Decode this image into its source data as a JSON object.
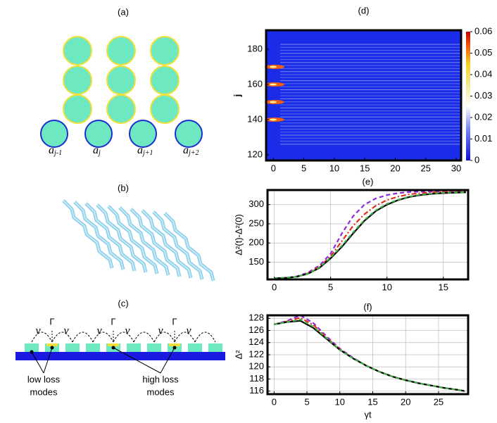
{
  "panels": {
    "a": {
      "label": "(a)",
      "sites": [
        {
          "base": "a",
          "sub": "j-1"
        },
        {
          "base": "a",
          "sub": "j"
        },
        {
          "base": "a",
          "sub": "j+1"
        },
        {
          "base": "a",
          "sub": "j+2"
        }
      ]
    },
    "b": {
      "label": "(b)"
    },
    "c": {
      "label": "(c)",
      "gamma": "Γ",
      "hop": "v",
      "low": [
        "low loss",
        "modes"
      ],
      "high": [
        "high loss",
        "modes"
      ]
    }
  },
  "chart_data": [
    {
      "type": "heatmap",
      "title": "(d)",
      "ylabel": "j",
      "xlim": [
        -1.2,
        30.8
      ],
      "ylim": [
        116.8,
        190.8
      ],
      "xticks": [
        0,
        5,
        10,
        15,
        20,
        25,
        30
      ],
      "yticks": [
        120,
        140,
        160,
        180
      ],
      "colorbar": {
        "lim": [
          0,
          0.06
        ],
        "ticks": [
          0,
          0.01,
          0.02,
          0.03,
          0.04,
          0.05,
          0.06
        ]
      }
    },
    {
      "type": "line",
      "title": "(e)",
      "ylabel": "Δ²(t)-Δ²(0)",
      "xlim": [
        -0.6,
        17.2
      ],
      "ylim": [
        105,
        338
      ],
      "xticks": [
        0,
        5,
        10,
        15
      ],
      "yticks": [
        150,
        200,
        250,
        300
      ],
      "grid": true,
      "x": [
        0,
        1,
        2,
        3,
        4,
        5,
        6,
        7,
        8,
        9,
        10,
        11,
        12,
        13,
        14,
        15,
        16,
        17
      ],
      "series": [
        {
          "color": "#8a2be2",
          "dash": "6,4",
          "values": [
            108,
            109,
            113,
            123,
            141,
            172,
            225,
            270,
            300,
            316,
            325,
            330,
            333,
            334,
            334,
            334,
            334,
            334
          ]
        },
        {
          "color": "#e0301e",
          "dash": "7,3,2,3",
          "values": [
            108,
            109,
            112,
            121,
            138,
            165,
            205,
            245,
            275,
            297,
            312,
            321,
            327,
            330,
            332,
            333,
            333,
            333
          ]
        },
        {
          "color": "#000000",
          "dash": "",
          "values": [
            108,
            109,
            112,
            120,
            135,
            160,
            190,
            225,
            258,
            283,
            300,
            312,
            320,
            325,
            328,
            330,
            331,
            332
          ]
        },
        {
          "color": "#3cb043",
          "dash": "5,4",
          "values": [
            108,
            109,
            112,
            120,
            136,
            162,
            193,
            228,
            260,
            285,
            302,
            313,
            321,
            326,
            329,
            331,
            332,
            332
          ]
        }
      ]
    },
    {
      "type": "line",
      "title": "(f)",
      "ylabel": "Δ²",
      "xlabel": "γt",
      "xlim": [
        -1,
        29.5
      ],
      "ylim": [
        115.5,
        128.5
      ],
      "xticks": [
        0,
        5,
        10,
        15,
        20,
        25
      ],
      "yticks": [
        116,
        118,
        120,
        122,
        124,
        126,
        128
      ],
      "grid": true,
      "x": [
        0,
        2,
        4,
        6,
        8,
        10,
        12,
        14,
        16,
        18,
        20,
        22,
        24,
        26,
        28,
        29
      ],
      "series": [
        {
          "color": "#8a2be2",
          "dash": "6,4",
          "values": [
            127.0,
            127.6,
            128.5,
            127.2,
            125.0,
            123.0,
            121.5,
            120.2,
            119.2,
            118.4,
            117.8,
            117.3,
            116.9,
            116.5,
            116.2,
            116.0
          ]
        },
        {
          "color": "#e0301e",
          "dash": "7,3,2,3",
          "values": [
            127.0,
            127.5,
            128.1,
            126.9,
            124.8,
            122.9,
            121.4,
            120.2,
            119.2,
            118.4,
            117.8,
            117.3,
            116.9,
            116.5,
            116.2,
            116.0
          ]
        },
        {
          "color": "#000000",
          "dash": "",
          "values": [
            127.0,
            127.4,
            127.6,
            126.4,
            124.6,
            122.8,
            121.4,
            120.2,
            119.2,
            118.4,
            117.8,
            117.3,
            116.9,
            116.5,
            116.2,
            116.0
          ]
        },
        {
          "color": "#3cb043",
          "dash": "5,4",
          "values": [
            127.0,
            127.4,
            127.8,
            126.6,
            124.7,
            122.8,
            121.4,
            120.2,
            119.2,
            118.4,
            117.8,
            117.3,
            116.9,
            116.5,
            116.2,
            116.0
          ]
        }
      ]
    }
  ]
}
